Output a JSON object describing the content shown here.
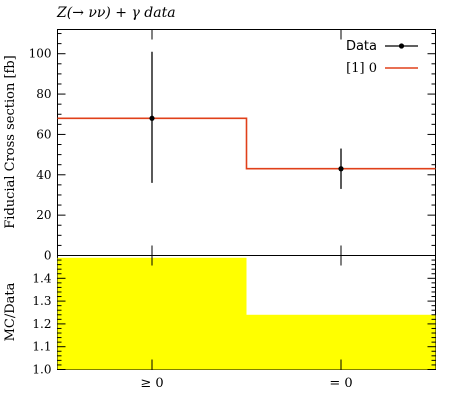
{
  "chart_data": [
    {
      "type": "line",
      "title": "Z(→ νν) + γ data",
      "ylabel": "Fiducial Cross section [fb]",
      "categories": [
        "≥ 0",
        "= 0"
      ],
      "ylim": [
        0,
        112
      ],
      "yticks": [
        "0",
        "20",
        "40",
        "60",
        "80",
        "100"
      ],
      "series": [
        {
          "name": "Data",
          "marker": "point-with-error-bars",
          "color": "#000000",
          "values": [
            68,
            43
          ],
          "err_up": [
            101,
            53
          ],
          "err_down": [
            36,
            33
          ]
        },
        {
          "name": "[1] 0",
          "marker": "step-line",
          "color": "#e0401a",
          "values": [
            68,
            43
          ]
        }
      ],
      "legend": "top-right",
      "grid": false
    },
    {
      "type": "bar",
      "ylabel": "MC/Data",
      "categories": [
        "≥ 0",
        "= 0"
      ],
      "ylim": [
        1.0,
        1.5
      ],
      "yticks": [
        "1.0",
        "1.1",
        "1.2",
        "1.3",
        "1.4"
      ],
      "series": [
        {
          "name": "MC/Data",
          "color": "#ffff00",
          "values": [
            1.49,
            1.24
          ]
        }
      ],
      "grid": false
    }
  ]
}
